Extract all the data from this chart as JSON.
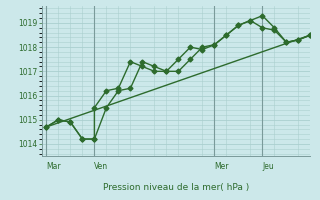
{
  "background_color": "#cce8ea",
  "grid_color": "#aacfcf",
  "line_color": "#2d6b2d",
  "text_color": "#2d6b2d",
  "xlabel": "Pression niveau de la mer( hPa )",
  "ylim": [
    1013.5,
    1019.7
  ],
  "yticks": [
    1014,
    1015,
    1016,
    1017,
    1018,
    1019
  ],
  "day_labels": [
    "Mar",
    "Ven",
    "Mer",
    "Jeu"
  ],
  "day_positions": [
    0,
    2,
    7,
    9
  ],
  "total_points": 11,
  "xlim": [
    -0.2,
    11.0
  ],
  "series1_x": [
    0,
    0.5,
    1.0,
    1.5,
    2.0,
    2.0,
    2.5,
    3.0,
    3.5,
    4.0,
    4.5,
    5.0,
    5.5,
    6.0,
    6.5,
    7.0,
    7.5,
    8.0,
    8.5,
    9.0,
    9.5,
    10.0,
    10.5,
    11.0
  ],
  "series1_y": [
    1014.7,
    1015.0,
    1014.9,
    1014.2,
    1014.2,
    1015.5,
    1016.2,
    1016.3,
    1017.4,
    1017.2,
    1017.0,
    1017.0,
    1017.5,
    1018.0,
    1017.9,
    1018.1,
    1018.5,
    1018.9,
    1019.1,
    1018.8,
    1018.7,
    1018.2,
    1018.3,
    1018.5
  ],
  "series2_x": [
    0,
    0.5,
    1.0,
    1.5,
    2.0,
    2.5,
    3.0,
    3.5,
    4.0,
    4.5,
    5.0,
    5.5,
    6.0,
    6.5,
    7.0,
    7.5,
    8.0,
    8.5,
    9.0,
    9.5,
    10.0,
    10.5,
    11.0
  ],
  "series2_y": [
    1014.7,
    1015.0,
    1014.9,
    1014.2,
    1014.2,
    1015.5,
    1016.2,
    1016.3,
    1017.4,
    1017.2,
    1017.0,
    1017.0,
    1017.5,
    1018.0,
    1018.1,
    1018.5,
    1018.9,
    1019.1,
    1019.3,
    1018.8,
    1018.2,
    1018.3,
    1018.5
  ],
  "trend_x": [
    0,
    11.0
  ],
  "trend_y": [
    1014.7,
    1018.5
  ],
  "marker_size": 2.5,
  "line_width": 1.0
}
